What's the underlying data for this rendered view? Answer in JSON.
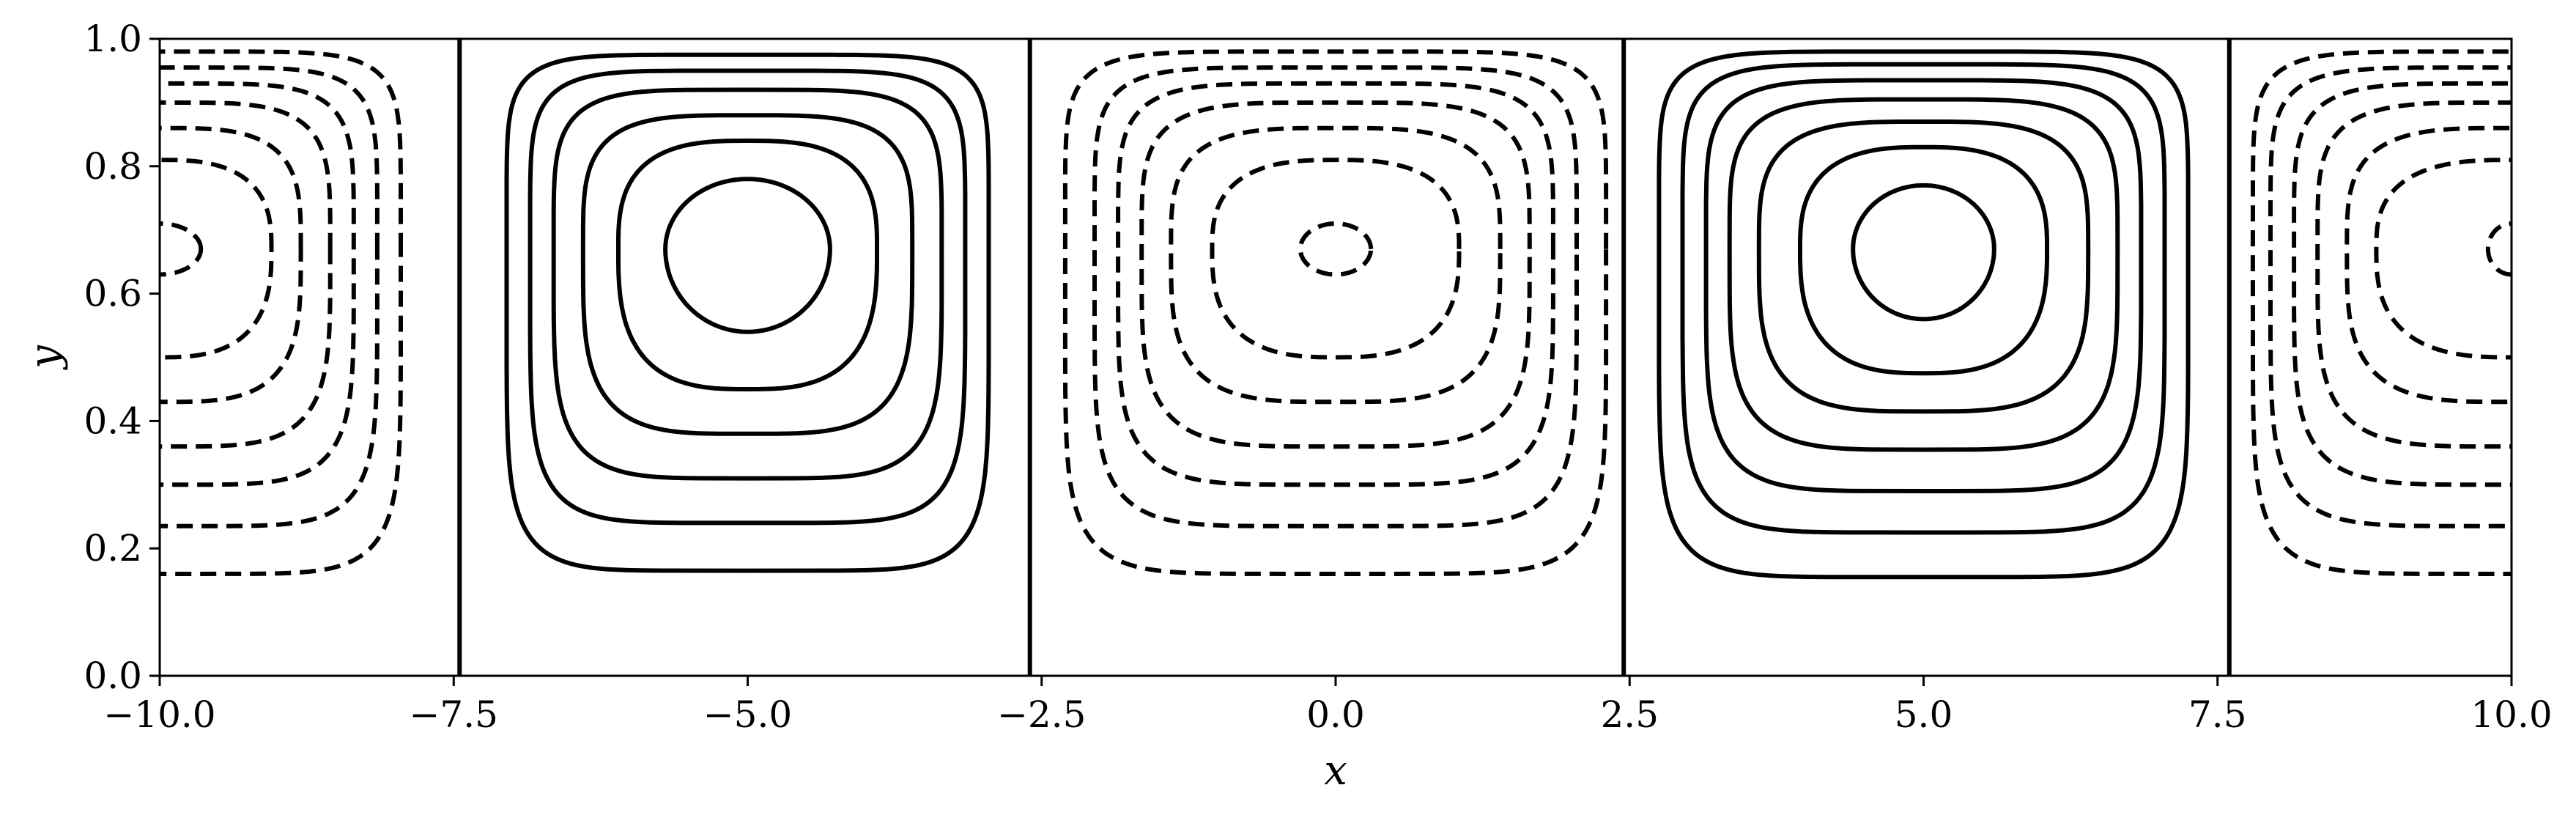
{
  "chart_data": {
    "type": "contour",
    "title": "",
    "xlabel": "x",
    "ylabel": "y",
    "xlim": [
      -10.0,
      10.0
    ],
    "ylim": [
      0.0,
      1.0
    ],
    "xticks": [
      "−10.0",
      "−7.5",
      "−5.0",
      "−2.5",
      "0.0",
      "2.5",
      "5.0",
      "7.5",
      "10.0"
    ],
    "yticks": [
      "0.0",
      "0.2",
      "0.4",
      "0.6",
      "0.8",
      "1.0"
    ],
    "grid": false,
    "line_color": "#000000",
    "separatrices_x": [
      -7.45,
      -2.6,
      2.45,
      7.6
    ],
    "cells": [
      {
        "sense": "negative",
        "style": "dashed",
        "center_x": -10.0,
        "center_y": 0.67,
        "clip": "right-half",
        "contours": [
          {
            "x_max": -9.65,
            "y_min": 0.63,
            "y_max": 0.71
          },
          {
            "x_max": -9.05,
            "y_min": 0.5,
            "y_max": 0.81
          },
          {
            "x_max": -8.8,
            "y_min": 0.43,
            "y_max": 0.86
          },
          {
            "x_max": -8.55,
            "y_min": 0.36,
            "y_max": 0.9
          },
          {
            "x_max": -8.35,
            "y_min": 0.3,
            "y_max": 0.93
          },
          {
            "x_max": -8.15,
            "y_min": 0.235,
            "y_max": 0.955
          },
          {
            "x_max": -7.95,
            "y_min": 0.16,
            "y_max": 0.98
          }
        ]
      },
      {
        "sense": "positive",
        "style": "solid",
        "center_x": -5.0,
        "center_y": 0.67,
        "clip": "none",
        "contours": [
          {
            "x_min": -5.7,
            "x_max": -4.3,
            "y_min": 0.54,
            "y_max": 0.78
          },
          {
            "x_min": -6.1,
            "x_max": -3.9,
            "y_min": 0.45,
            "y_max": 0.84
          },
          {
            "x_min": -6.4,
            "x_max": -3.6,
            "y_min": 0.38,
            "y_max": 0.88
          },
          {
            "x_min": -6.65,
            "x_max": -3.35,
            "y_min": 0.31,
            "y_max": 0.92
          },
          {
            "x_min": -6.85,
            "x_max": -3.15,
            "y_min": 0.24,
            "y_max": 0.95
          },
          {
            "x_min": -7.05,
            "x_max": -2.95,
            "y_min": 0.165,
            "y_max": 0.975
          }
        ]
      },
      {
        "sense": "negative",
        "style": "dashed",
        "center_x": 0.0,
        "center_y": 0.67,
        "clip": "none",
        "contours": [
          {
            "x_min": -0.3,
            "x_max": 0.3,
            "y_min": 0.63,
            "y_max": 0.71
          },
          {
            "x_min": -1.05,
            "x_max": 1.05,
            "y_min": 0.5,
            "y_max": 0.81
          },
          {
            "x_min": -1.4,
            "x_max": 1.4,
            "y_min": 0.43,
            "y_max": 0.86
          },
          {
            "x_min": -1.65,
            "x_max": 1.65,
            "y_min": 0.36,
            "y_max": 0.9
          },
          {
            "x_min": -1.85,
            "x_max": 1.85,
            "y_min": 0.3,
            "y_max": 0.93
          },
          {
            "x_min": -2.05,
            "x_max": 2.05,
            "y_min": 0.235,
            "y_max": 0.955
          },
          {
            "x_min": -2.3,
            "x_max": 2.3,
            "y_min": 0.16,
            "y_max": 0.98
          }
        ]
      },
      {
        "sense": "positive",
        "style": "solid",
        "center_x": 5.0,
        "center_y": 0.67,
        "clip": "none",
        "contours": [
          {
            "x_min": 4.4,
            "x_max": 5.6,
            "y_min": 0.56,
            "y_max": 0.77
          },
          {
            "x_min": 3.95,
            "x_max": 6.05,
            "y_min": 0.475,
            "y_max": 0.83
          },
          {
            "x_min": 3.6,
            "x_max": 6.4,
            "y_min": 0.415,
            "y_max": 0.87
          },
          {
            "x_min": 3.35,
            "x_max": 6.65,
            "y_min": 0.355,
            "y_max": 0.905
          },
          {
            "x_min": 3.15,
            "x_max": 6.85,
            "y_min": 0.29,
            "y_max": 0.935
          },
          {
            "x_min": 2.95,
            "x_max": 7.05,
            "y_min": 0.225,
            "y_max": 0.96
          },
          {
            "x_min": 2.75,
            "x_max": 7.25,
            "y_min": 0.155,
            "y_max": 0.98
          }
        ]
      },
      {
        "sense": "negative",
        "style": "dashed",
        "center_x": 10.0,
        "center_y": 0.67,
        "clip": "left-half",
        "contours": [
          {
            "x_min": 9.8,
            "y_min": 0.63,
            "y_max": 0.71
          },
          {
            "x_min": 8.85,
            "y_min": 0.5,
            "y_max": 0.81
          },
          {
            "x_min": 8.6,
            "y_min": 0.43,
            "y_max": 0.86
          },
          {
            "x_min": 8.35,
            "y_min": 0.36,
            "y_max": 0.9
          },
          {
            "x_min": 8.15,
            "y_min": 0.3,
            "y_max": 0.93
          },
          {
            "x_min": 7.95,
            "y_min": 0.235,
            "y_max": 0.955
          },
          {
            "x_min": 7.8,
            "y_min": 0.16,
            "y_max": 0.98
          }
        ]
      }
    ]
  }
}
